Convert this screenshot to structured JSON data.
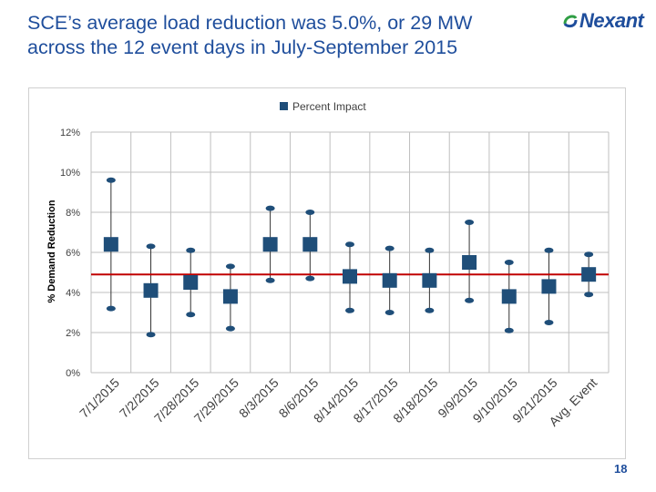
{
  "slide": {
    "title_line1": "SCE’s average load reduction was 5.0%, or 29 MW",
    "title_line2": "across the 12 event days in July-September 2015",
    "page_number": "18"
  },
  "logo": {
    "text": "Nexant",
    "color": "#1f4e9c"
  },
  "colors": {
    "title": "#1f4e9c",
    "marker": "#1f4e79",
    "reference_line": "#c00000",
    "whisker": "#333333",
    "grid": "#bfbfbf"
  },
  "chart_data": {
    "type": "scatter",
    "legend": [
      "Percent Impact"
    ],
    "legend_position": "top-center",
    "ylabel": "% Demand Reduction",
    "xlabel": "",
    "ylim": [
      0,
      12
    ],
    "yticks": [
      0,
      2,
      4,
      6,
      8,
      10,
      12
    ],
    "ytick_labels": [
      "0%",
      "2%",
      "4%",
      "6%",
      "8%",
      "10%",
      "12%"
    ],
    "categories": [
      "7/1/2015",
      "7/2/2015",
      "7/28/2015",
      "7/29/2015",
      "8/3/2015",
      "8/6/2015",
      "8/14/2015",
      "8/17/2015",
      "8/18/2015",
      "9/9/2015",
      "9/10/2015",
      "9/21/2015",
      "Avg. Event"
    ],
    "series": [
      {
        "name": "Percent Impact",
        "values": [
          6.4,
          4.1,
          4.5,
          3.8,
          6.4,
          6.4,
          4.8,
          4.6,
          4.6,
          5.5,
          3.8,
          4.3,
          4.9
        ]
      },
      {
        "name": "Upper bound",
        "values": [
          9.6,
          6.3,
          6.1,
          5.3,
          8.2,
          8.0,
          6.4,
          6.2,
          6.1,
          7.5,
          5.5,
          6.1,
          5.9
        ]
      },
      {
        "name": "Lower bound",
        "values": [
          3.2,
          1.9,
          2.9,
          2.2,
          4.6,
          4.7,
          3.1,
          3.0,
          3.1,
          3.6,
          2.1,
          2.5,
          3.9
        ]
      }
    ],
    "reference_line": {
      "value": 4.9
    },
    "grid": true
  }
}
